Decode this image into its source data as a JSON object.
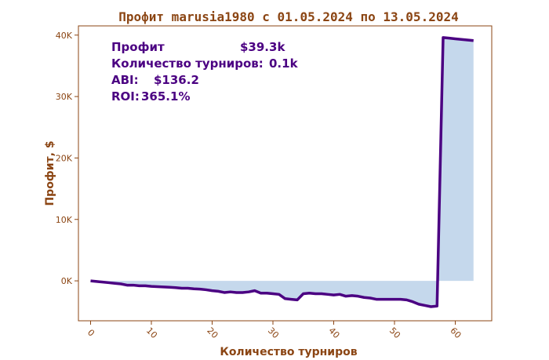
{
  "chart_data": {
    "type": "area",
    "title": "Профит marusia1980 с 01.05.2024 по 13.05.2024",
    "xlabel": "Количество турниров",
    "ylabel": "Профит, $",
    "x_ticks": [
      0,
      10,
      20,
      30,
      40,
      50,
      60
    ],
    "y_ticks": [
      0,
      10000,
      20000,
      30000,
      40000
    ],
    "y_tick_labels": [
      "0K",
      "10K",
      "20K",
      "30K",
      "40K"
    ],
    "xlim": [
      -2,
      66
    ],
    "ylim": [
      -6500,
      41500
    ],
    "grid": false,
    "colors": {
      "line": "#4B0082",
      "fill": "#c5d8ec",
      "text": "#8B4513",
      "stats": "#4B0082"
    },
    "stats": {
      "profit_label": "Профит",
      "profit_value": "$39.3k",
      "tournaments_label": "Количество турниров:",
      "tournaments_value": "0.1k",
      "abi_label": "ABI:",
      "abi_value": "$136.2",
      "roi_label": "ROI:",
      "roi_value": "365.1%"
    },
    "x": [
      0,
      1,
      2,
      3,
      4,
      5,
      6,
      7,
      8,
      9,
      10,
      11,
      12,
      13,
      14,
      15,
      16,
      17,
      18,
      19,
      20,
      21,
      22,
      23,
      24,
      25,
      26,
      27,
      28,
      29,
      30,
      31,
      32,
      33,
      34,
      35,
      36,
      37,
      38,
      39,
      40,
      41,
      42,
      43,
      44,
      45,
      46,
      47,
      48,
      49,
      50,
      51,
      52,
      53,
      54,
      55,
      56,
      57,
      58,
      59,
      60,
      61,
      62,
      63
    ],
    "y": [
      0,
      -100,
      -200,
      -300,
      -400,
      -500,
      -700,
      -700,
      -800,
      -800,
      -900,
      -950,
      -1000,
      -1050,
      -1100,
      -1200,
      -1200,
      -1300,
      -1350,
      -1450,
      -1600,
      -1700,
      -1900,
      -1800,
      -1900,
      -1900,
      -1800,
      -1600,
      -2000,
      -2000,
      -2100,
      -2200,
      -2900,
      -3000,
      -3100,
      -2100,
      -2000,
      -2100,
      -2100,
      -2200,
      -2300,
      -2200,
      -2500,
      -2400,
      -2500,
      -2700,
      -2800,
      -3000,
      -3000,
      -3000,
      -3000,
      -3000,
      -3100,
      -3400,
      -3800,
      -4000,
      -4200,
      -4100,
      39600,
      39500,
      39400,
      39300,
      39200,
      39100
    ]
  }
}
